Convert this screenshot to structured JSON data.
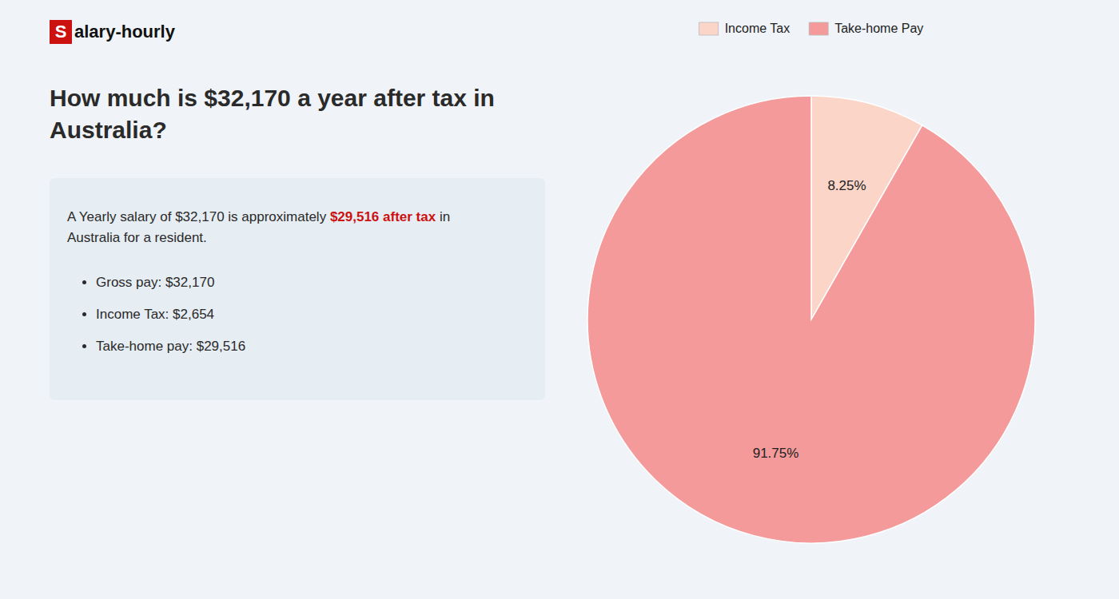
{
  "page": {
    "background_color": "#f0f4f8",
    "logo_color": "#cc1111",
    "logo_mark": "S",
    "logo_text": "alary-hourly",
    "heading": [
      "How much is $32,170 a year after tax in",
      "Australia?"
    ],
    "heading_color": "#2a2a2a",
    "box_color": "#e6edf3",
    "text_color": "#2a2a2a",
    "highlight_color": "#cc1111",
    "body": [
      "A Yearly salary of $32,170 is approximately ",
      "$29,516 after tax",
      " in"
    ],
    "body_line2": "Australia for a resident.",
    "bullets": [
      "Gross pay: $32,170",
      "Income Tax: $2,654",
      "Take-home pay: $29,516"
    ]
  },
  "chart_data": {
    "type": "pie",
    "categories": [
      "Income Tax",
      "Take-home Pay"
    ],
    "values": [
      8.25,
      91.75
    ],
    "value_labels": [
      "8.25%",
      "91.75%"
    ],
    "colors": [
      "#fad5c8",
      "#f59a9a"
    ],
    "data_labels": true,
    "legend": "top"
  }
}
